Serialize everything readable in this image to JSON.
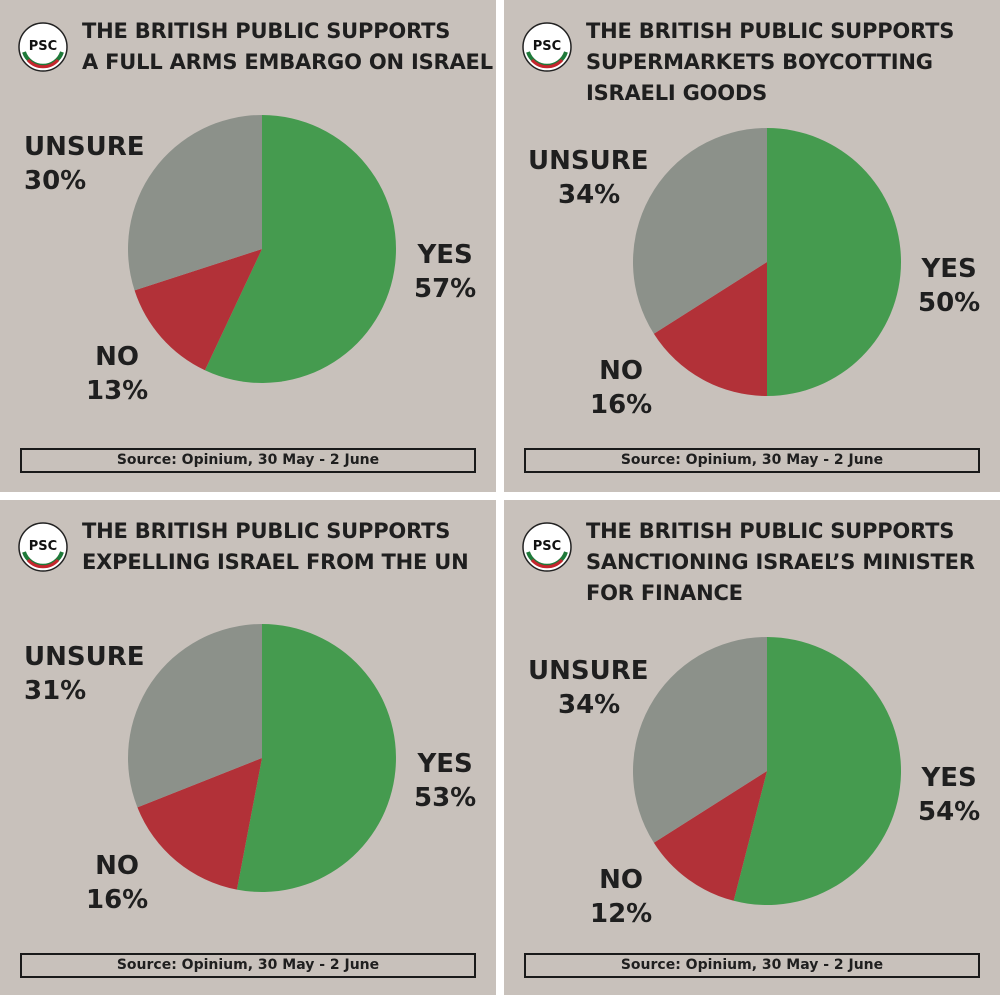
{
  "logo_text": "PSC",
  "colors": {
    "yes": "#459b4f",
    "no": "#b23138",
    "unsure": "#8c918a",
    "background": "#c8c1bb"
  },
  "chart_data": [
    {
      "type": "pie",
      "title_lines": [
        "THE BRITISH PUBLIC SUPPORTS",
        "A FULL ARMS EMBARGO ON ISRAEL"
      ],
      "slices": [
        {
          "label": "YES",
          "value": 57,
          "display": "57%"
        },
        {
          "label": "NO",
          "value": 13,
          "display": "13%"
        },
        {
          "label": "UNSURE",
          "value": 30,
          "display": "30%"
        }
      ],
      "source": "Source: Opinium,  30 May - 2 June"
    },
    {
      "type": "pie",
      "title_lines": [
        "THE BRITISH PUBLIC SUPPORTS",
        "SUPERMARKETS BOYCOTTING",
        "ISRAELI GOODS"
      ],
      "slices": [
        {
          "label": "YES",
          "value": 50,
          "display": "50%"
        },
        {
          "label": "NO",
          "value": 16,
          "display": "16%"
        },
        {
          "label": "UNSURE",
          "value": 34,
          "display": "34%"
        }
      ],
      "source": "Source: Opinium,  30 May - 2 June"
    },
    {
      "type": "pie",
      "title_lines": [
        "THE BRITISH PUBLIC SUPPORTS",
        "EXPELLING ISRAEL FROM THE UN"
      ],
      "slices": [
        {
          "label": "YES",
          "value": 53,
          "display": "53%"
        },
        {
          "label": "NO",
          "value": 16,
          "display": "16%"
        },
        {
          "label": "UNSURE",
          "value": 31,
          "display": "31%"
        }
      ],
      "source": "Source: Opinium,  30 May - 2 June"
    },
    {
      "type": "pie",
      "title_lines": [
        "THE BRITISH PUBLIC SUPPORTS",
        "SANCTIONING ISRAEL’S MINISTER",
        "FOR FINANCE"
      ],
      "slices": [
        {
          "label": "YES",
          "value": 54,
          "display": "54%"
        },
        {
          "label": "NO",
          "value": 12,
          "display": "12%"
        },
        {
          "label": "UNSURE",
          "value": 34,
          "display": "34%"
        }
      ],
      "source": "Source: Opinium,  30 May - 2 June"
    }
  ]
}
